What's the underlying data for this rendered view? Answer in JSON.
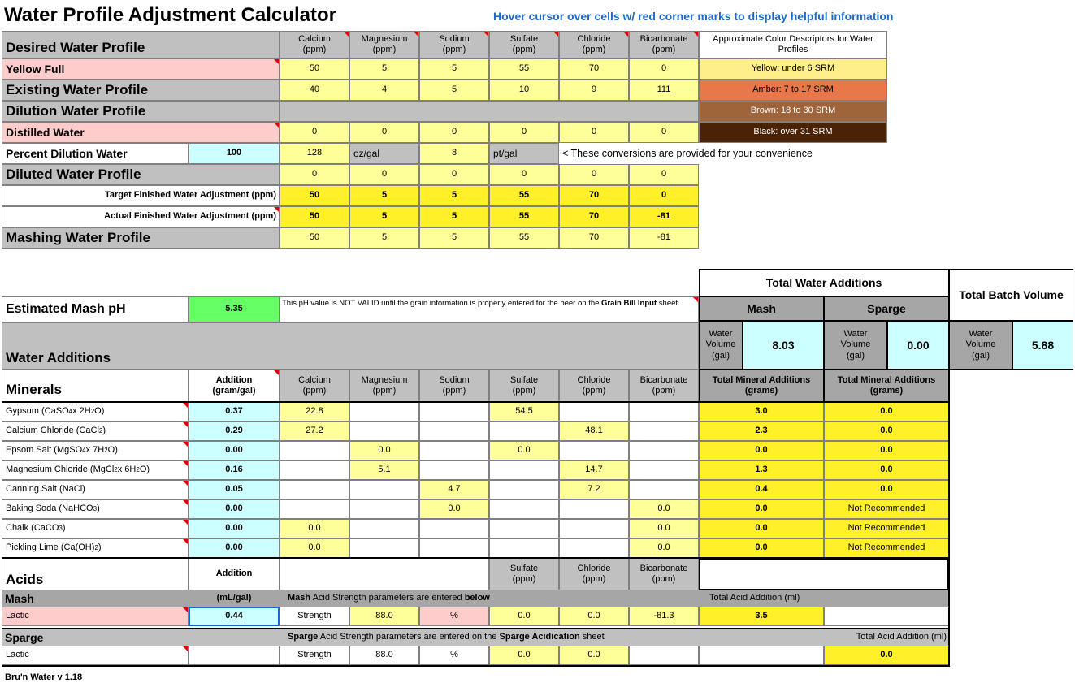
{
  "header": {
    "title": "Water Profile Adjustment Calculator",
    "hint": "Hover cursor over cells w/ red corner marks to display helpful information"
  },
  "ions": [
    "Calcium\n(ppm)",
    "Magnesium\n(ppm)",
    "Sodium\n(ppm)",
    "Sulfate\n(ppm)",
    "Chloride\n(ppm)",
    "Bicarbonate\n(ppm)"
  ],
  "color_descriptors": {
    "header": "Approximate Color Descriptors for Water Profiles",
    "yellow": "Yellow: under 6 SRM",
    "amber": "Amber: 7 to 17 SRM",
    "brown": "Brown: 18 to 30 SRM",
    "black": "Black: over 31 SRM"
  },
  "profiles": {
    "desired_label": "Desired Water Profile",
    "desired_name": "Yellow Full",
    "desired_values": [
      "50",
      "5",
      "5",
      "55",
      "70",
      "0"
    ],
    "existing_label": "Existing Water Profile",
    "existing_values": [
      "40",
      "4",
      "5",
      "10",
      "9",
      "111"
    ],
    "dilution_label": "Dilution Water Profile",
    "dilution_name": "Distilled Water",
    "dilution_values": [
      "0",
      "0",
      "0",
      "0",
      "0",
      "0"
    ],
    "percent_label": "Percent Dilution Water",
    "percent_value": "100",
    "conv_oz": "128",
    "conv_oz_unit": "oz/gal",
    "conv_pt": "8",
    "conv_pt_unit": "pt/gal",
    "conv_note": "< These conversions are provided for your convenience",
    "diluted_label": "Diluted Water Profile",
    "diluted_values": [
      "0",
      "0",
      "0",
      "0",
      "0",
      "0"
    ],
    "target_label": "Target Finished Water Adjustment (ppm)",
    "target_values": [
      "50",
      "5",
      "5",
      "55",
      "70",
      "0"
    ],
    "actual_label": "Actual Finished Water Adjustment (ppm)",
    "actual_values": [
      "50",
      "5",
      "5",
      "55",
      "70",
      "-81"
    ],
    "mashing_label": "Mashing Water Profile",
    "mashing_values": [
      "50",
      "5",
      "5",
      "55",
      "70",
      "-81"
    ]
  },
  "totals": {
    "title": "Total Water Additions",
    "batch_title": "Total Batch Volume",
    "mash": "Mash",
    "sparge": "Sparge",
    "water_volume_label": "Water\nVolume\n(gal)",
    "mash_volume": "8.03",
    "sparge_volume": "0.00",
    "batch_volume": "5.88",
    "mineral_header": "Total Mineral Additions\n(grams)"
  },
  "ph": {
    "label": "Estimated Mash pH",
    "value": "5.35",
    "note_pre": "This pH value is NOT VALID until the grain information is properly entered for the beer on the ",
    "note_bold": "Grain Bill Input",
    "note_post": " sheet."
  },
  "additions": {
    "title": "Water Additions",
    "minerals_label": "Minerals",
    "addition_header": "Addition\n(gram/gal)"
  },
  "minerals": [
    {
      "name": "Gypsum (CaSO",
      "sub": "4",
      "tail": " x 2H",
      "sub2": "2",
      "tail2": "O)",
      "add": "0.37",
      "ca": "22.8",
      "mg": "",
      "na": "",
      "so4": "54.5",
      "cl": "",
      "hco3": "",
      "mash": "3.0",
      "sparge": "0.0"
    },
    {
      "name": "Calcium Chloride (CaCl",
      "sub": "2",
      "tail": ")",
      "sub2": "",
      "tail2": "",
      "add": "0.29",
      "ca": "27.2",
      "mg": "",
      "na": "",
      "so4": "",
      "cl": "48.1",
      "hco3": "",
      "mash": "2.3",
      "sparge": "0.0"
    },
    {
      "name": "Epsom Salt (MgSO",
      "sub": "4",
      "tail": " x 7H",
      "sub2": "2",
      "tail2": "O)",
      "add": "0.00",
      "ca": "",
      "mg": "0.0",
      "na": "",
      "so4": "0.0",
      "cl": "",
      "hco3": "",
      "mash": "0.0",
      "sparge": "0.0"
    },
    {
      "name": "Magnesium Chloride (MgCl",
      "sub": "2",
      "tail": " x 6H",
      "sub2": "2",
      "tail2": "O)",
      "add": "0.16",
      "ca": "",
      "mg": "5.1",
      "na": "",
      "so4": "",
      "cl": "14.7",
      "hco3": "",
      "mash": "1.3",
      "sparge": "0.0"
    },
    {
      "name": "Canning Salt (NaCl)",
      "sub": "",
      "tail": "",
      "sub2": "",
      "tail2": "",
      "add": "0.05",
      "ca": "",
      "mg": "",
      "na": "4.7",
      "so4": "",
      "cl": "7.2",
      "hco3": "",
      "mash": "0.4",
      "sparge": "0.0"
    },
    {
      "name": "Baking Soda (NaHCO",
      "sub": "3",
      "tail": ")",
      "sub2": "",
      "tail2": "",
      "add": "0.00",
      "ca": "",
      "mg": "",
      "na": "0.0",
      "so4": "",
      "cl": "",
      "hco3": "0.0",
      "mash": "0.0",
      "sparge": "Not Recommended"
    },
    {
      "name": "Chalk (CaCO",
      "sub": "3",
      "tail": ")",
      "sub2": "",
      "tail2": "",
      "add": "0.00",
      "ca": "0.0",
      "mg": "",
      "na": "",
      "so4": "",
      "cl": "",
      "hco3": "0.0",
      "mash": "0.0",
      "sparge": "Not Recommended"
    },
    {
      "name": "Pickling Lime (Ca(OH)",
      "sub": "2",
      "tail": ")",
      "sub2": "",
      "tail2": "",
      "add": "0.00",
      "ca": "0.0",
      "mg": "",
      "na": "",
      "so4": "",
      "cl": "",
      "hco3": "0.0",
      "mash": "0.0",
      "sparge": "Not Recommended"
    }
  ],
  "acids": {
    "title": "Acids",
    "addition_label": "Addition",
    "headers": [
      "Sulfate\n(ppm)",
      "Chloride\n(ppm)",
      "Bicarbonate\n(ppm)"
    ],
    "mash_label": "Mash",
    "units": "(mL/gal)",
    "mash_note_pre": "Mash",
    "mash_note_mid": " Acid Strength parameters are entered ",
    "mash_note_bold": "below",
    "total_label": "Total Acid Addition (ml)",
    "mash_acid": "Lactic",
    "mash_amount": "0.44",
    "strength_label": "Strength",
    "mash_strength": "88.0",
    "percent": "%",
    "mash_so4": "0.0",
    "mash_cl": "0.0",
    "mash_hco3": "-81.3",
    "mash_total": "3.5",
    "sparge_label": "Sparge",
    "sparge_note_pre": "Sparge",
    "sparge_note_mid": " Acid Strength parameters are entered on the ",
    "sparge_note_bold": "Sparge Acidication",
    "sparge_note_post": " sheet",
    "sparge_acid": "Lactic",
    "sparge_strength": "88.0",
    "sparge_so4": "0.0",
    "sparge_cl": "0.0",
    "sparge_total": "0.0"
  },
  "footer": {
    "version": "Bru'n Water v 1.18"
  },
  "colors": {
    "amber": "#e8784a",
    "brown": "#a0643a",
    "black": "#4a2306"
  }
}
